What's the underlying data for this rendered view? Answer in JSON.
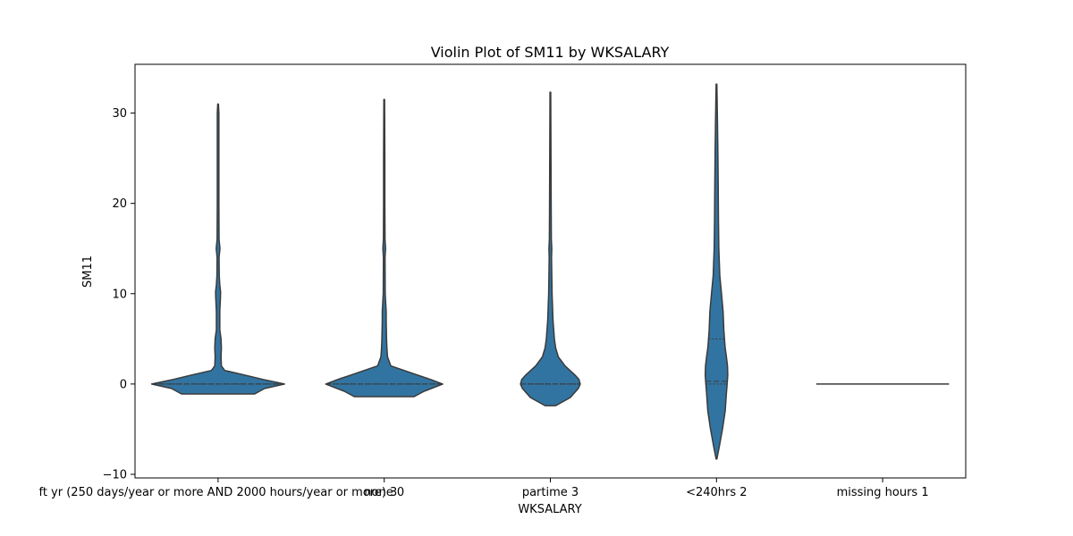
{
  "chart_data": {
    "type": "violin",
    "title": "Violin Plot of SM11 by WKSALARY",
    "xlabel": "WKSALARY",
    "ylabel": "SM11",
    "ylim": [
      -10.4,
      35.4
    ],
    "yticks": [
      -10,
      0,
      10,
      20,
      30
    ],
    "grid": false,
    "inner": "quartile",
    "color": "#3274a1",
    "edge_color": "#3a3a3a",
    "categories": [
      "ft yr (250 days/year or more AND 2000 hours/year or more) 3",
      "none 0",
      "partime 3",
      "<240hrs 2",
      "missing hours 1"
    ],
    "category_labels": [
      "ft yr (250 days/year or more AND 2000 hours/year or more) 3",
      "none 0",
      "partime 3",
      "<240hrs 2",
      "missing hours 1"
    ],
    "violins": [
      {
        "min": -1.1,
        "max": 31,
        "quartiles": [
          0,
          0,
          0
        ],
        "density": [
          [
            -1.1,
            0.55
          ],
          [
            -0.5,
            0.7
          ],
          [
            0,
            1.0
          ],
          [
            0.5,
            0.68
          ],
          [
            1,
            0.4
          ],
          [
            1.5,
            0.1
          ],
          [
            2,
            0.05
          ],
          [
            3,
            0.045
          ],
          [
            4,
            0.05
          ],
          [
            5,
            0.045
          ],
          [
            6,
            0.025
          ],
          [
            8,
            0.025
          ],
          [
            9.5,
            0.035
          ],
          [
            10.2,
            0.038
          ],
          [
            11,
            0.025
          ],
          [
            12,
            0.018
          ],
          [
            14,
            0.015
          ],
          [
            15,
            0.028
          ],
          [
            16,
            0.015
          ],
          [
            20,
            0.012
          ],
          [
            25,
            0.012
          ],
          [
            30,
            0.012
          ],
          [
            31,
            0.006
          ]
        ]
      },
      {
        "min": -1.4,
        "max": 31.5,
        "quartiles": [
          0,
          0,
          0
        ],
        "density": [
          [
            -1.4,
            0.45
          ],
          [
            -0.8,
            0.6
          ],
          [
            0,
            0.88
          ],
          [
            0.5,
            0.7
          ],
          [
            1,
            0.5
          ],
          [
            1.5,
            0.3
          ],
          [
            2,
            0.1
          ],
          [
            3,
            0.05
          ],
          [
            4,
            0.04
          ],
          [
            5,
            0.035
          ],
          [
            7,
            0.03
          ],
          [
            8,
            0.03
          ],
          [
            10,
            0.015
          ],
          [
            14,
            0.012
          ],
          [
            15,
            0.02
          ],
          [
            16,
            0.012
          ],
          [
            20,
            0.01
          ],
          [
            25,
            0.01
          ],
          [
            31.5,
            0.005
          ]
        ]
      },
      {
        "min": -2.4,
        "max": 32.3,
        "quartiles": [
          0,
          0,
          0
        ],
        "density": [
          [
            -2.4,
            0.08
          ],
          [
            -1.5,
            0.3
          ],
          [
            -0.5,
            0.42
          ],
          [
            0,
            0.45
          ],
          [
            0.5,
            0.43
          ],
          [
            1,
            0.37
          ],
          [
            2,
            0.22
          ],
          [
            3,
            0.12
          ],
          [
            4,
            0.08
          ],
          [
            5,
            0.06
          ],
          [
            7,
            0.04
          ],
          [
            10,
            0.025
          ],
          [
            14,
            0.018
          ],
          [
            15,
            0.022
          ],
          [
            16,
            0.015
          ],
          [
            20,
            0.012
          ],
          [
            25,
            0.01
          ],
          [
            32.3,
            0.005
          ]
        ]
      },
      {
        "min": -8.3,
        "max": 33.2,
        "quartiles": [
          0,
          0.3,
          5
        ],
        "density": [
          [
            -8.3,
            0.005
          ],
          [
            -7,
            0.04
          ],
          [
            -5,
            0.09
          ],
          [
            -3,
            0.13
          ],
          [
            -1,
            0.15
          ],
          [
            0,
            0.16
          ],
          [
            1,
            0.17
          ],
          [
            2,
            0.165
          ],
          [
            3,
            0.15
          ],
          [
            4,
            0.13
          ],
          [
            5,
            0.12
          ],
          [
            6,
            0.11
          ],
          [
            8,
            0.1
          ],
          [
            10,
            0.075
          ],
          [
            12,
            0.05
          ],
          [
            15,
            0.035
          ],
          [
            18,
            0.03
          ],
          [
            22,
            0.025
          ],
          [
            26,
            0.02
          ],
          [
            29,
            0.015
          ],
          [
            33.2,
            0.005
          ]
        ]
      },
      {
        "min": 0,
        "max": 0,
        "quartiles": [
          0,
          0,
          0
        ],
        "density": []
      }
    ]
  }
}
